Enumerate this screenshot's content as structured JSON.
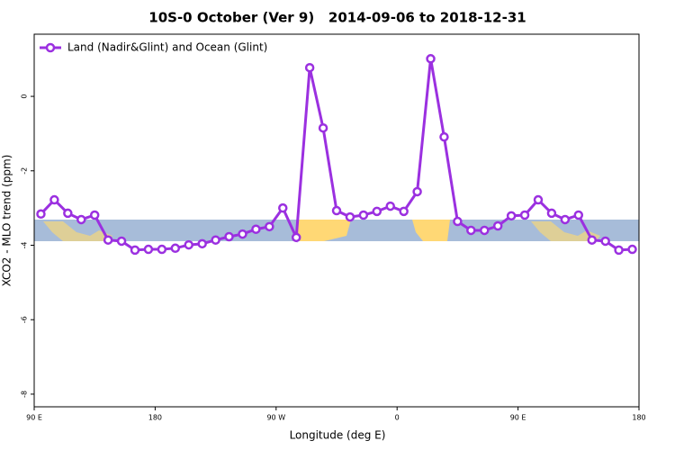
{
  "chart_data": {
    "type": "line",
    "title": "10S-0 October (Ver 9)   2014-09-06 to 2018-12-31",
    "xlabel": "Longitude (deg E)",
    "ylabel": "XCO2 - MLO trend (ppm)",
    "x": [
      95,
      105,
      115,
      125,
      135,
      145,
      155,
      165,
      175,
      185,
      195,
      205,
      215,
      225,
      235,
      245,
      255,
      265,
      275,
      285,
      295,
      305,
      315,
      325,
      335,
      345,
      355,
      365,
      375,
      385,
      395,
      405,
      415,
      425,
      435,
      445,
      455,
      465,
      475,
      485,
      495,
      505,
      515,
      525,
      535
    ],
    "series": [
      {
        "name": "Land (Nadir&Glint) and Ocean (Glint)",
        "color": "#9b30e0",
        "values": [
          -3.16,
          -2.78,
          -3.14,
          -3.31,
          -3.19,
          -3.86,
          -3.89,
          -4.13,
          -4.11,
          -4.11,
          -4.08,
          -3.99,
          -3.96,
          -3.86,
          -3.77,
          -3.7,
          -3.57,
          -3.5,
          -3.0,
          -3.79,
          0.77,
          -0.85,
          -3.07,
          -3.24,
          -3.19,
          -3.09,
          -2.95,
          -3.09,
          -2.56,
          1.01,
          -1.09,
          -3.36,
          -3.6,
          -3.6,
          -3.48,
          -3.21,
          -3.19,
          -2.78,
          -3.14,
          -3.31,
          -3.19,
          -3.86,
          -3.89,
          -4.13,
          -4.11
        ]
      }
    ],
    "xlim": [
      90,
      540
    ],
    "xticks": [
      {
        "value": 90,
        "label": "90 E"
      },
      {
        "value": 180,
        "label": "180"
      },
      {
        "value": 270,
        "label": "90 W"
      },
      {
        "value": 360,
        "label": "0"
      },
      {
        "value": 450,
        "label": "90 E"
      },
      {
        "value": 540,
        "label": "180"
      }
    ],
    "ylim": [
      -8.34,
      1.67
    ],
    "yticks": [
      0,
      -2,
      -4,
      -6,
      -8
    ],
    "legend": "top-left"
  }
}
